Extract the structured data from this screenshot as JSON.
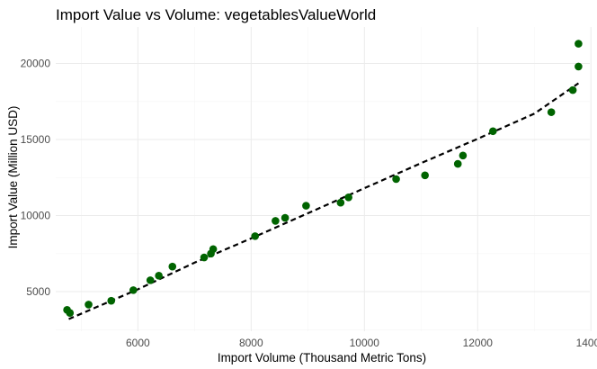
{
  "chart_data": {
    "type": "scatter",
    "title": "Import Value vs Volume: vegetablesValueWorld",
    "xlabel": "Import Volume (Thousand Metric Tons)",
    "ylabel": "Import Value (Million USD)",
    "xlim": [
      4550,
      13980
    ],
    "ylim": [
      2400,
      22400
    ],
    "x_ticks": [
      6000,
      8000,
      10000,
      12000,
      14000
    ],
    "x_tick_labels": [
      "6000",
      "8000",
      "10000",
      "12000",
      "14000"
    ],
    "y_ticks": [
      5000,
      10000,
      15000,
      20000
    ],
    "y_tick_labels": [
      "5000",
      "10000",
      "15000",
      "20000"
    ],
    "grid": true,
    "point_color": "#006400",
    "points": [
      {
        "x": 4750,
        "y": 3800
      },
      {
        "x": 4800,
        "y": 3600
      },
      {
        "x": 5130,
        "y": 4150
      },
      {
        "x": 5530,
        "y": 4400
      },
      {
        "x": 5920,
        "y": 5100
      },
      {
        "x": 6220,
        "y": 5750
      },
      {
        "x": 6370,
        "y": 6050
      },
      {
        "x": 6610,
        "y": 6650
      },
      {
        "x": 7170,
        "y": 7250
      },
      {
        "x": 7290,
        "y": 7500
      },
      {
        "x": 7330,
        "y": 7800
      },
      {
        "x": 8070,
        "y": 8650
      },
      {
        "x": 8430,
        "y": 9650
      },
      {
        "x": 8600,
        "y": 9850
      },
      {
        "x": 8970,
        "y": 10650
      },
      {
        "x": 9580,
        "y": 10850
      },
      {
        "x": 9720,
        "y": 11200
      },
      {
        "x": 10560,
        "y": 12400
      },
      {
        "x": 11070,
        "y": 12650
      },
      {
        "x": 11650,
        "y": 13400
      },
      {
        "x": 11740,
        "y": 13950
      },
      {
        "x": 12270,
        "y": 15550
      },
      {
        "x": 13300,
        "y": 16800
      },
      {
        "x": 13680,
        "y": 18250
      },
      {
        "x": 13780,
        "y": 19800
      },
      {
        "x": 13780,
        "y": 21300
      }
    ],
    "trend_line": {
      "style": "dashed",
      "color": "#000000",
      "points": [
        {
          "x": 4780,
          "y": 3200
        },
        {
          "x": 6000,
          "y": 5150
        },
        {
          "x": 7000,
          "y": 6900
        },
        {
          "x": 8000,
          "y": 8500
        },
        {
          "x": 9000,
          "y": 10150
        },
        {
          "x": 10000,
          "y": 11800
        },
        {
          "x": 11000,
          "y": 13450
        },
        {
          "x": 12000,
          "y": 15050
        },
        {
          "x": 13000,
          "y": 16700
        },
        {
          "x": 13780,
          "y": 18700
        }
      ]
    }
  }
}
